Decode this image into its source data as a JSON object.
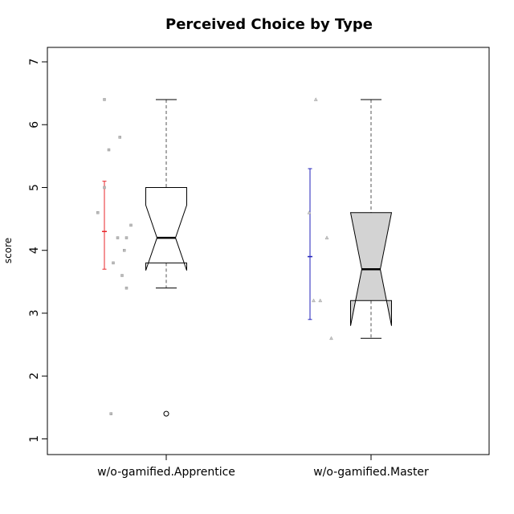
{
  "chart_data": {
    "type": "box",
    "title": "Perceived Choice by Type",
    "xlabel": "",
    "ylabel": "score",
    "ylim": [
      0.75,
      7.23
    ],
    "yticks": [
      1,
      2,
      3,
      4,
      5,
      6,
      7
    ],
    "categories": [
      "w/o-gamified.Apprentice",
      "w/o-gamified.Master"
    ],
    "boxes": [
      {
        "category": "w/o-gamified.Apprentice",
        "fill": "#ffffff",
        "whisker_low": 3.4,
        "q1": 3.8,
        "median": 4.2,
        "q3": 5.0,
        "whisker_high": 6.4,
        "notch_low": 3.68,
        "notch_high": 4.72,
        "outliers": [
          1.4
        ],
        "mean": 4.3,
        "ci_low": 3.7,
        "ci_high": 5.1,
        "ci_color": "#e8262a",
        "points": [
          {
            "x": -1.4,
            "y": 6.4
          },
          {
            "x": -1.05,
            "y": 5.8
          },
          {
            "x": -1.3,
            "y": 5.6
          },
          {
            "x": -1.4,
            "y": 5.0
          },
          {
            "x": -1.55,
            "y": 4.6
          },
          {
            "x": -0.8,
            "y": 4.4
          },
          {
            "x": -1.1,
            "y": 4.2
          },
          {
            "x": -0.9,
            "y": 4.2
          },
          {
            "x": -0.95,
            "y": 4.0
          },
          {
            "x": -1.2,
            "y": 3.8
          },
          {
            "x": -1.0,
            "y": 3.6
          },
          {
            "x": -0.9,
            "y": 3.4
          },
          {
            "x": -1.25,
            "y": 1.4
          }
        ]
      },
      {
        "category": "w/o-gamified.Master",
        "fill": "#d3d3d3",
        "whisker_low": 2.6,
        "q1": 3.2,
        "median": 3.7,
        "q3": 4.6,
        "whisker_high": 6.4,
        "notch_low": 2.8,
        "notch_high": 4.6,
        "outliers": [],
        "mean": 3.9,
        "ci_low": 2.9,
        "ci_high": 5.3,
        "ci_color": "#2222bb",
        "points": [
          {
            "x": -1.25,
            "y": 6.4
          },
          {
            "x": -1.4,
            "y": 4.6
          },
          {
            "x": -1.0,
            "y": 4.2
          },
          {
            "x": -1.3,
            "y": 3.2
          },
          {
            "x": -1.15,
            "y": 3.2
          },
          {
            "x": -0.9,
            "y": 2.6
          }
        ]
      }
    ],
    "grid": false,
    "legend": "none"
  }
}
